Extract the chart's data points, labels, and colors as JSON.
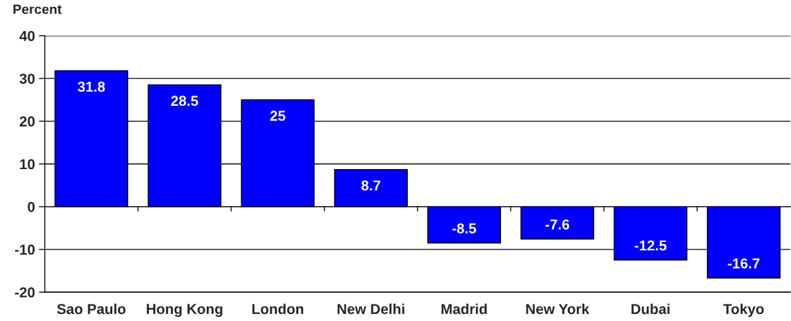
{
  "chart_data": {
    "type": "bar",
    "ylabel": "Percent",
    "categories": [
      "Sao Paulo",
      "Hong Kong",
      "London",
      "New Delhi",
      "Madrid",
      "New York",
      "Dubai",
      "Tokyo"
    ],
    "values": [
      31.8,
      28.5,
      25,
      8.7,
      -8.5,
      -7.6,
      -12.5,
      -16.7
    ],
    "color": "#0000ff",
    "ylim": [
      -20,
      40
    ],
    "yticks": [
      -20,
      -10,
      0,
      10,
      20,
      30,
      40
    ],
    "grid": "y",
    "data_labels": true
  }
}
